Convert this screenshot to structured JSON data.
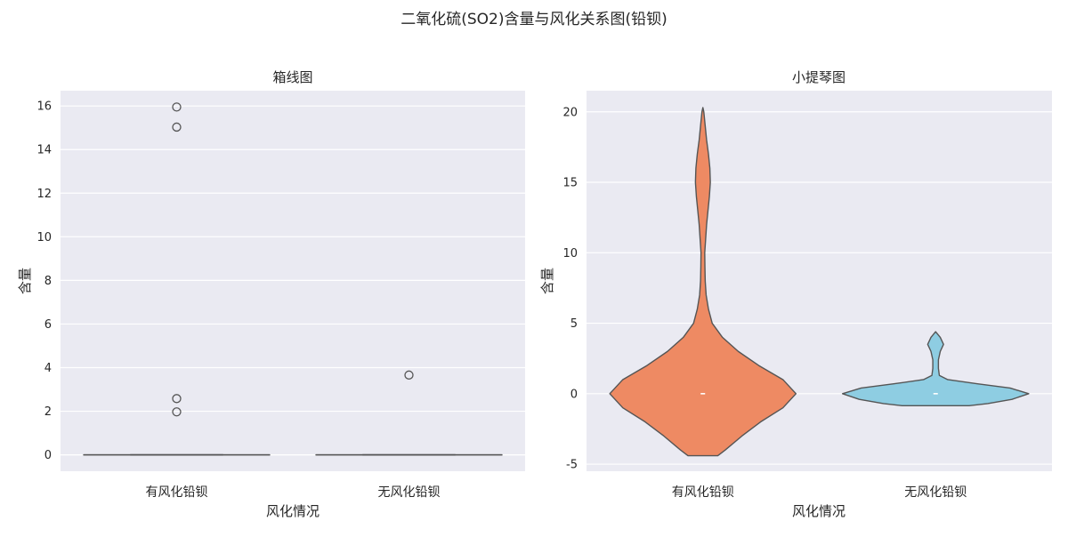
{
  "figure_title": "二氧化硫(SO2)含量与风化关系图(铅钡)",
  "colors": {
    "panel_bg": "#eaeaf2",
    "grid": "#ffffff",
    "line": "#555555",
    "weathered": "#ee8a63",
    "unweathered": "#8ecde2"
  },
  "chart_data": [
    {
      "type": "box",
      "title": "箱线图",
      "xlabel": "风化情况",
      "ylabel": "含量",
      "categories": [
        "有风化铅钡",
        "无风化铅钡"
      ],
      "ylim": [
        -0.75,
        16.7
      ],
      "yticks": [
        0,
        2,
        4,
        6,
        8,
        10,
        12,
        14,
        16
      ],
      "boxes": [
        {
          "category": "有风化铅钡",
          "q1": 0,
          "median": 0,
          "q3": 0,
          "whisker_low": 0,
          "whisker_high": 0,
          "outliers": [
            15.95,
            15.03,
            2.58,
            1.97
          ]
        },
        {
          "category": "无风化铅钡",
          "q1": 0,
          "median": 0,
          "q3": 0,
          "whisker_low": 0,
          "whisker_high": 0,
          "outliers": [
            3.66
          ]
        }
      ]
    },
    {
      "type": "violin",
      "title": "小提琴图",
      "xlabel": "风化情况",
      "ylabel": "含量",
      "categories": [
        "有风化铅钡",
        "无风化铅钡"
      ],
      "ylim": [
        -5.5,
        21.5
      ],
      "yticks": [
        -5,
        0,
        5,
        10,
        15,
        20
      ],
      "violins": [
        {
          "category": "有风化铅钡",
          "median": 0,
          "profile": [
            [
              -4.4,
              0.16
            ],
            [
              -4,
              0.24
            ],
            [
              -3,
              0.42
            ],
            [
              -2,
              0.62
            ],
            [
              -1,
              0.86
            ],
            [
              0,
              1.0
            ],
            [
              1,
              0.86
            ],
            [
              2,
              0.6
            ],
            [
              3,
              0.38
            ],
            [
              4,
              0.21
            ],
            [
              5,
              0.1
            ],
            [
              6,
              0.06
            ],
            [
              7,
              0.035
            ],
            [
              8,
              0.025
            ],
            [
              9,
              0.022
            ],
            [
              10,
              0.02
            ],
            [
              11,
              0.03
            ],
            [
              12,
              0.04
            ],
            [
              13,
              0.055
            ],
            [
              14,
              0.07
            ],
            [
              15,
              0.08
            ],
            [
              16,
              0.075
            ],
            [
              17,
              0.06
            ],
            [
              18,
              0.04
            ],
            [
              19,
              0.025
            ],
            [
              20,
              0.01
            ],
            [
              20.3,
              0
            ]
          ]
        },
        {
          "category": "无风化铅钡",
          "median": 0,
          "profile": [
            [
              -0.85,
              0.36
            ],
            [
              -0.7,
              0.56
            ],
            [
              -0.4,
              0.82
            ],
            [
              0,
              1.0
            ],
            [
              0.4,
              0.8
            ],
            [
              0.7,
              0.45
            ],
            [
              1,
              0.13
            ],
            [
              1.3,
              0.04
            ],
            [
              1.8,
              0.03
            ],
            [
              2.4,
              0.03
            ],
            [
              3,
              0.05
            ],
            [
              3.5,
              0.085
            ],
            [
              4,
              0.05
            ],
            [
              4.4,
              0
            ]
          ]
        }
      ]
    }
  ]
}
